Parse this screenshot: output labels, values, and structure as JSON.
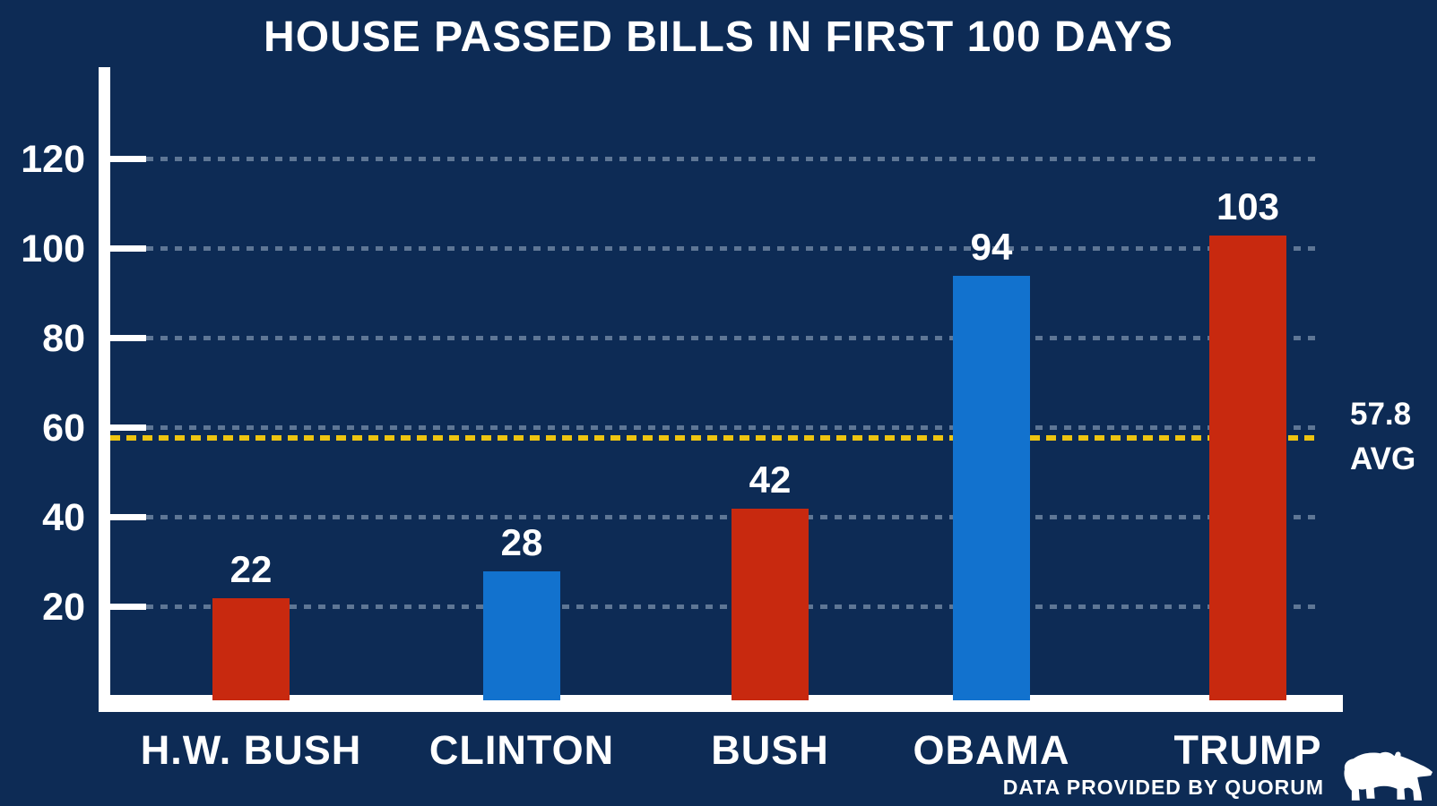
{
  "page_title": "HOUSE PASSED BILLS IN FIRST 100 DAYS",
  "chart_data": {
    "type": "bar",
    "title": "HOUSE PASSED BILLS IN FIRST 100 DAYS",
    "categories": [
      "H.W. BUSH",
      "CLINTON",
      "BUSH",
      "OBAMA",
      "TRUMP"
    ],
    "values": [
      22,
      28,
      42,
      94,
      103
    ],
    "bar_colors": [
      "#C8290F",
      "#1272CE",
      "#C8290F",
      "#1272CE",
      "#C8290F"
    ],
    "xlabel": "",
    "ylabel": "",
    "ylim": [
      0,
      130
    ],
    "yticks": [
      120,
      100,
      80,
      60,
      40,
      20
    ],
    "grid": true,
    "grid_style": "dashed",
    "legend": false,
    "average_line": {
      "value": 57.8,
      "label_line1": "57.8",
      "label_line2": "AVG",
      "style": "dashed",
      "color": "#EDC411"
    }
  },
  "colors": {
    "background": "#0D2B55",
    "axis": "#FFFFFF",
    "text": "#FFFFFF",
    "grid": "#5E7695",
    "republican_red": "#C8290F",
    "democrat_blue": "#1272CE",
    "average_yellow": "#EDC411"
  },
  "footer": {
    "attribution": "DATA PROVIDED BY QUORUM",
    "logo": "quorum-bear"
  }
}
